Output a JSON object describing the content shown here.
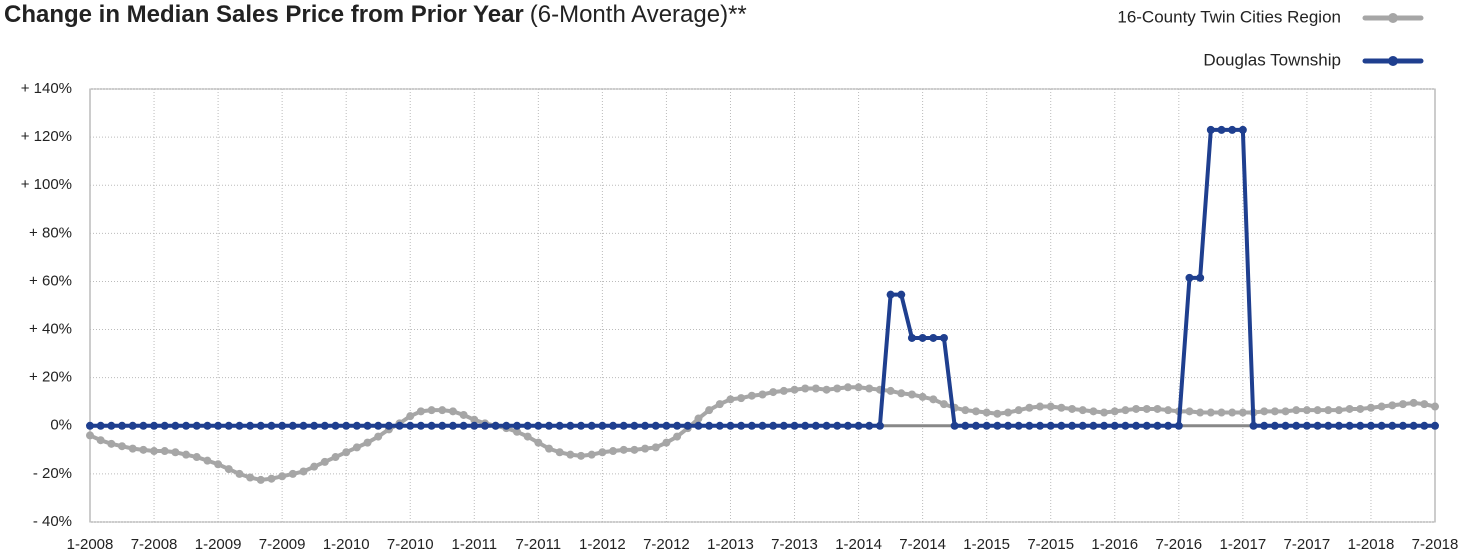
{
  "chart_data": {
    "type": "line",
    "title": "Change in Median Sales Price from Prior Year",
    "subtitle": "(6-Month Average)**",
    "categories": [
      "1-2008",
      null,
      null,
      null,
      null,
      null,
      "7-2008",
      null,
      null,
      null,
      null,
      null,
      "1-2009",
      null,
      null,
      null,
      null,
      null,
      "7-2009",
      null,
      null,
      null,
      null,
      null,
      "1-2010",
      null,
      null,
      null,
      null,
      null,
      "7-2010",
      null,
      null,
      null,
      null,
      null,
      "1-2011",
      null,
      null,
      null,
      null,
      null,
      "7-2011",
      null,
      null,
      null,
      null,
      null,
      "1-2012",
      null,
      null,
      null,
      null,
      null,
      "7-2012",
      null,
      null,
      null,
      null,
      null,
      "1-2013",
      null,
      null,
      null,
      null,
      null,
      "7-2013",
      null,
      null,
      null,
      null,
      null,
      "1-2014",
      null,
      null,
      null,
      null,
      null,
      "7-2014",
      null,
      null,
      null,
      null,
      null,
      "1-2015",
      null,
      null,
      null,
      null,
      null,
      "7-2015",
      null,
      null,
      null,
      null,
      null,
      "1-2016",
      null,
      null,
      null,
      null,
      null,
      "7-2016",
      null,
      null,
      null,
      null,
      null,
      "1-2017",
      null,
      null,
      null,
      null,
      null,
      "7-2017",
      null,
      null,
      null,
      null,
      null,
      "1-2018",
      null,
      null,
      null,
      null,
      null,
      "7-2018"
    ],
    "series": [
      {
        "name": "16-County Twin Cities Region",
        "color": "#a6a6a6",
        "values": [
          -4,
          -6,
          -7.5,
          -8.5,
          -9.5,
          -10,
          -10.5,
          -10.5,
          -11,
          -12,
          -13,
          -14.5,
          -16,
          -18,
          -20,
          -21.5,
          -22.5,
          -22,
          -21,
          -20,
          -19,
          -17,
          -15,
          -13,
          -11,
          -9,
          -7,
          -4.5,
          -1.5,
          1,
          4,
          6,
          6.5,
          6.5,
          6,
          4.5,
          2.5,
          1,
          0,
          -1,
          -2.5,
          -4.5,
          -7,
          -9.5,
          -11,
          -12,
          -12.5,
          -12,
          -11,
          -10.5,
          -10,
          -10,
          -9.5,
          -9,
          -7,
          -4.5,
          -1,
          3,
          6.5,
          9,
          11,
          11.5,
          12.5,
          13,
          14,
          14.5,
          15,
          15.5,
          15.5,
          15,
          15.5,
          16,
          16,
          15.5,
          15,
          14.5,
          13.5,
          13,
          12,
          11,
          9,
          7.5,
          6.5,
          6,
          5.5,
          5,
          5.5,
          6.5,
          7.5,
          8,
          8,
          7.5,
          7,
          6.5,
          6,
          5.5,
          6,
          6.5,
          7,
          7,
          7,
          6.5,
          6,
          6,
          5.5,
          5.5,
          5.5,
          5.5,
          5.5,
          5.5,
          6,
          6,
          6,
          6.5,
          6.5,
          6.5,
          6.5,
          6.5,
          7,
          7,
          7.5,
          8,
          8.5,
          9,
          9.5,
          9,
          8
        ]
      },
      {
        "name": "Douglas Township",
        "color": "#1f3f8f",
        "values": [
          0,
          0,
          0,
          0,
          0,
          0,
          0,
          0,
          0,
          0,
          0,
          0,
          0,
          0,
          0,
          0,
          0,
          0,
          0,
          0,
          0,
          0,
          0,
          0,
          0,
          0,
          0,
          0,
          0,
          0,
          0,
          0,
          0,
          0,
          0,
          0,
          0,
          0,
          0,
          0,
          0,
          0,
          0,
          0,
          0,
          0,
          0,
          0,
          0,
          0,
          0,
          0,
          0,
          0,
          0,
          0,
          0,
          0,
          0,
          0,
          0,
          0,
          0,
          0,
          0,
          0,
          0,
          0,
          0,
          0,
          0,
          0,
          0,
          0,
          0,
          54.5,
          54.5,
          36.5,
          36.5,
          36.5,
          36.5,
          0,
          0,
          0,
          0,
          0,
          0,
          0,
          0,
          0,
          0,
          0,
          0,
          0,
          0,
          0,
          0,
          0,
          0,
          0,
          0,
          0,
          0,
          61.5,
          61.5,
          123,
          123,
          123,
          123,
          0,
          0,
          0,
          0,
          0,
          0,
          0,
          0,
          0,
          0,
          0,
          0,
          0,
          0,
          0,
          0,
          0,
          0
        ]
      }
    ],
    "ylim": [
      -40,
      140
    ],
    "yticks": [
      {
        "value": -40,
        "label": "- 40%"
      },
      {
        "value": -20,
        "label": "- 20%"
      },
      {
        "value": 0,
        "label": "0%"
      },
      {
        "value": 20,
        "label": "+ 20%"
      },
      {
        "value": 40,
        "label": "+ 40%"
      },
      {
        "value": 60,
        "label": "+ 60%"
      },
      {
        "value": 80,
        "label": "+ 80%"
      },
      {
        "value": 100,
        "label": "+ 100%"
      },
      {
        "value": 120,
        "label": "+ 120%"
      },
      {
        "value": 140,
        "label": "+ 140%"
      }
    ],
    "grid": true,
    "legend": "top-right"
  }
}
